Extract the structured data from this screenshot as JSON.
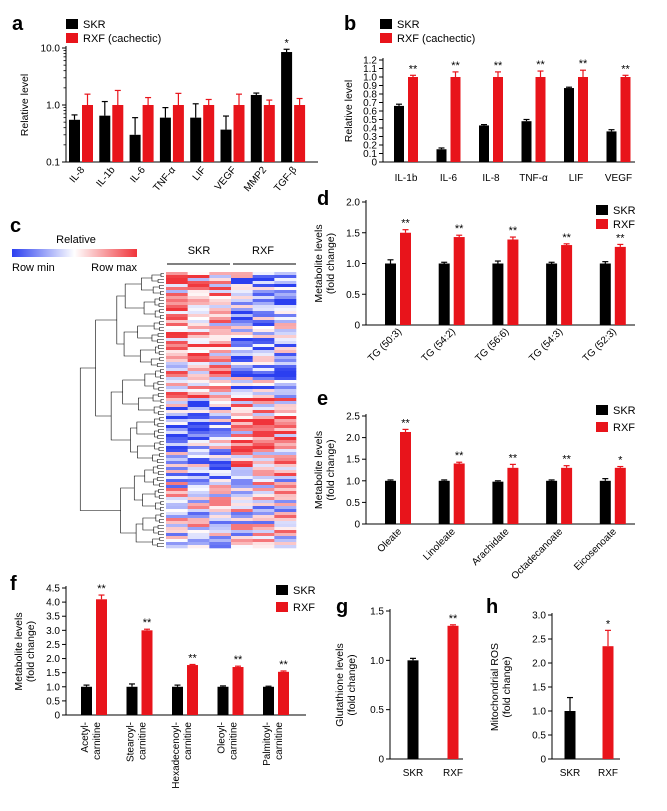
{
  "colors": {
    "skr": "#000000",
    "rxf": "#e8141b",
    "heat_low": "#2b3ff0",
    "heat_high": "#f0343a",
    "heat_mid": "#ffffff"
  },
  "chart_data": [
    {
      "panel": "a",
      "type": "bar",
      "yscale": "log",
      "ylim": [
        0.1,
        10
      ],
      "yticks": [
        "0.1",
        "1.0",
        "10.0"
      ],
      "ylabel": "Relative level",
      "categories": [
        "IL-8",
        "IL-1b",
        "IL-6",
        "TNF-α",
        "LIF",
        "VEGF",
        "MMP2",
        "TGF-β"
      ],
      "series": [
        {
          "name": "SKR",
          "values": [
            0.55,
            0.65,
            0.3,
            0.6,
            0.6,
            0.37,
            1.5,
            8.5
          ],
          "errors": [
            0.12,
            0.5,
            0.3,
            0.3,
            0.45,
            0.27,
            0.12,
            1.0
          ]
        },
        {
          "name": "RXF (cachectic)",
          "values": [
            1.0,
            1.0,
            1.0,
            1.0,
            1.0,
            1.0,
            1.0,
            1.0
          ],
          "errors": [
            0.55,
            0.8,
            0.35,
            0.6,
            0.25,
            0.55,
            0.22,
            0.3
          ]
        }
      ],
      "annotations": [
        "",
        "",
        "",
        "",
        "",
        "",
        "",
        "*"
      ]
    },
    {
      "panel": "b",
      "type": "bar",
      "ylim": [
        0,
        1.2
      ],
      "yticks": [
        "0",
        "0.1",
        "0.2",
        "0.3",
        "0.4",
        "0.5",
        "0.6",
        "0.7",
        "0.8",
        "0.9",
        "1.0",
        "1.1",
        "1.2"
      ],
      "ylabel": "Relative level",
      "categories": [
        "IL-1b",
        "IL-6",
        "IL-8",
        "TNF-α",
        "LIF",
        "VEGF"
      ],
      "series": [
        {
          "name": "SKR",
          "values": [
            0.66,
            0.15,
            0.43,
            0.48,
            0.87,
            0.36
          ],
          "errors": [
            0.02,
            0.015,
            0.01,
            0.02,
            0.01,
            0.02
          ]
        },
        {
          "name": "RXF (cachectic)",
          "values": [
            1.0,
            1.0,
            1.0,
            1.0,
            1.0,
            1.0
          ],
          "errors": [
            0.02,
            0.06,
            0.06,
            0.07,
            0.08,
            0.02
          ]
        }
      ],
      "annotations": [
        "**",
        "**",
        "**",
        "**",
        "**",
        "**"
      ]
    },
    {
      "panel": "d",
      "type": "bar",
      "ylim": [
        0,
        2.0
      ],
      "yticks": [
        "0",
        "0.5",
        "1.0",
        "1.5",
        "2.0"
      ],
      "ylabel": [
        "Metabolite levels",
        "(fold change)"
      ],
      "categories": [
        "TG (50:3)",
        "TG (54:2)",
        "TG (56:6)",
        "TG (54:3)",
        "TG (52:3)"
      ],
      "series": [
        {
          "name": "SKR",
          "values": [
            1.0,
            1.0,
            1.0,
            1.0,
            1.0
          ],
          "errors": [
            0.06,
            0.02,
            0.04,
            0.02,
            0.03
          ]
        },
        {
          "name": "RXF",
          "values": [
            1.5,
            1.43,
            1.39,
            1.3,
            1.27
          ],
          "errors": [
            0.05,
            0.03,
            0.04,
            0.02,
            0.04
          ]
        }
      ],
      "annotations": [
        "**",
        "**",
        "**",
        "**",
        "**"
      ]
    },
    {
      "panel": "e",
      "type": "bar",
      "ylim": [
        0,
        2.5
      ],
      "yticks": [
        "0",
        "0.5",
        "1.0",
        "1.5",
        "2.0",
        "2.5"
      ],
      "ylabel": [
        "Metabolite levels",
        "(fold change)"
      ],
      "categories": [
        "Oleate",
        "Linoleate",
        "Arachidate",
        "Octadecanoate",
        "Eicosenoate"
      ],
      "series": [
        {
          "name": "SKR",
          "values": [
            1.0,
            1.0,
            0.98,
            1.0,
            1.0
          ],
          "errors": [
            0.02,
            0.02,
            0.02,
            0.02,
            0.05
          ]
        },
        {
          "name": "RXF",
          "values": [
            2.13,
            1.4,
            1.3,
            1.3,
            1.3
          ],
          "errors": [
            0.06,
            0.03,
            0.08,
            0.05,
            0.03
          ]
        }
      ],
      "annotations": [
        "**",
        "**",
        "**",
        "**",
        "*"
      ]
    },
    {
      "panel": "f",
      "type": "bar",
      "ylim": [
        0,
        4.5
      ],
      "yticks": [
        "0",
        "0.5",
        "1.0",
        "1.5",
        "2.0",
        "2.5",
        "3.0",
        "3.5",
        "4.0",
        "4.5"
      ],
      "ylabel": [
        "Metabolite levels",
        "(fold change)"
      ],
      "categories": [
        [
          "Acetyl-",
          "carnitine"
        ],
        [
          "Stearoyl-",
          "carnitine"
        ],
        [
          "Hexadecenoyl-",
          "carnitine"
        ],
        [
          "Oleoyl-",
          "carnitine"
        ],
        [
          "Palmitoyl-",
          "carnitine"
        ]
      ],
      "series": [
        {
          "name": "SKR",
          "values": [
            1.0,
            1.0,
            1.0,
            1.0,
            1.0
          ],
          "errors": [
            0.06,
            0.1,
            0.06,
            0.03,
            0.02
          ]
        },
        {
          "name": "RXF",
          "values": [
            4.1,
            3.0,
            1.77,
            1.7,
            1.53
          ],
          "errors": [
            0.15,
            0.04,
            0.02,
            0.03,
            0.03
          ]
        }
      ],
      "annotations": [
        "**",
        "**",
        "**",
        "**",
        "**"
      ]
    },
    {
      "panel": "g",
      "type": "bar",
      "ylim": [
        0,
        1.5
      ],
      "yticks": [
        "0",
        "0.5",
        "1.0",
        "1.5"
      ],
      "ylabel": [
        "Glutathione levels",
        "(fold change)"
      ],
      "categories": [
        "SKR",
        "RXF"
      ],
      "values": [
        1.0,
        1.35
      ],
      "errors": [
        0.02,
        0.01
      ],
      "annotations": [
        "",
        "**"
      ]
    },
    {
      "panel": "h",
      "type": "bar",
      "ylim": [
        0,
        3.0
      ],
      "yticks": [
        "0",
        "0.5",
        "1.0",
        "1.5",
        "2.0",
        "2.5",
        "3.0"
      ],
      "ylabel": [
        "Mitochondrial ROS",
        "(fold change)"
      ],
      "categories": [
        "SKR",
        "RXF"
      ],
      "values": [
        1.0,
        2.35
      ],
      "errors": [
        0.28,
        0.33
      ],
      "annotations": [
        "",
        "*"
      ]
    },
    {
      "panel": "c",
      "type": "heatmap",
      "legend_title": "Relative",
      "legend_min": "Row min",
      "legend_max": "Row max",
      "groups": [
        "SKR",
        "RXF"
      ]
    }
  ]
}
